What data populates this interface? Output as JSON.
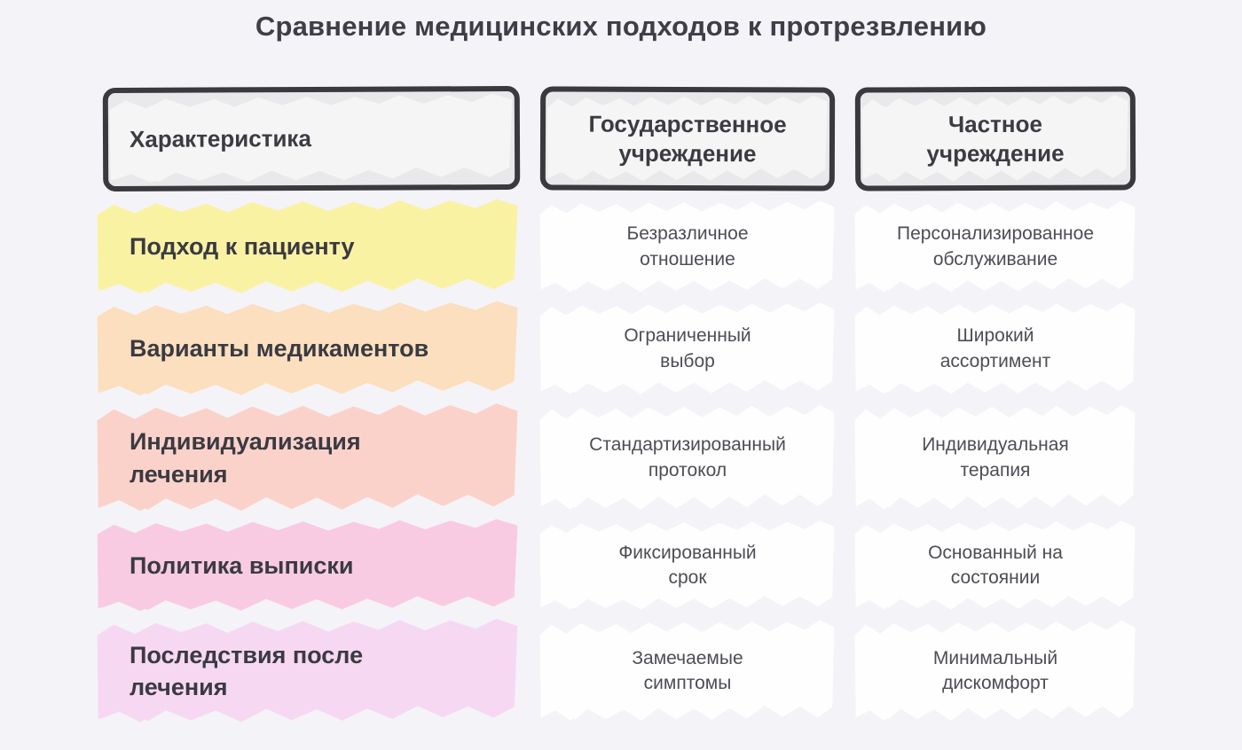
{
  "title": "Сравнение медицинских подходов к протрезвлению",
  "table": {
    "headers": [
      {
        "label": "Характеристика"
      },
      {
        "label": "Государственное\nучреждение"
      },
      {
        "label": "Частное\nучреждение"
      }
    ],
    "rows": [
      {
        "label": "Подход к пациенту",
        "highlight": "row_yellow",
        "state": "Безразличное\nотношение",
        "private": "Персонализированное\nобслуживание"
      },
      {
        "label": "Варианты медикаментов",
        "highlight": "row_orange",
        "state": "Ограниченный\nвыбор",
        "private": "Широкий\nассортимент"
      },
      {
        "label": "Индивидуализация\nлечения",
        "highlight": "row_salmon",
        "state": "Стандартизированный\nпротокол",
        "private": "Индивидуальная\nтерапия"
      },
      {
        "label": "Политика выписки",
        "highlight": "row_pink",
        "state": "Фиксированный\nсрок",
        "private": "Основанный на\nсостоянии"
      },
      {
        "label": "Последствия после\nлечения",
        "highlight": "row_violet",
        "state": "Замечаемые\nсимптомы",
        "private": "Минимальный\nдискомфорт"
      }
    ]
  },
  "colors": {
    "background": "#f4f3f8",
    "title_text": "#3e3e46",
    "label_text": "#3a3a42",
    "cell_text": "#4d4d55",
    "header_fill": "#e9e9eb",
    "header_border": "#3a3a3e",
    "cell_scribble": "#ffffff",
    "row_yellow": "#faf2a3",
    "row_orange": "#fbdfbe",
    "row_salmon": "#fbd2ca",
    "row_pink": "#f9cbe2",
    "row_violet": "#f7d8f2"
  }
}
